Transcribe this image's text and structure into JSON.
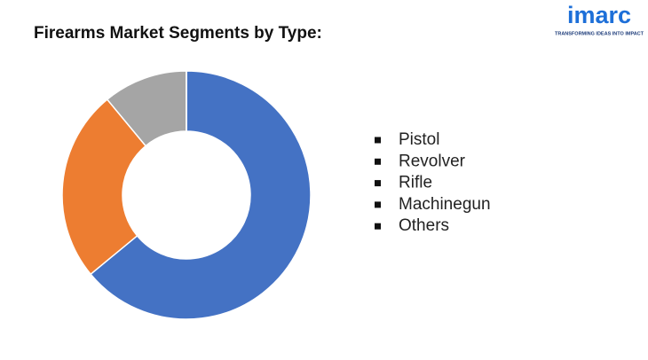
{
  "chart_data": {
    "type": "donut",
    "title": "Firearms Market Segments by Type:",
    "categories": [
      "Pistol",
      "Revolver",
      "Rifle",
      "Machinegun",
      "Others"
    ],
    "values": [
      64,
      25,
      11,
      0,
      0
    ],
    "colors": [
      "#4472c4",
      "#ed7d31",
      "#a5a5a5",
      "#ffc000",
      "#5b9bd5"
    ],
    "legend": "right"
  },
  "logo": {
    "name": "imarc",
    "tagline": "TRANSFORMING IDEAS INTO IMPACT"
  }
}
